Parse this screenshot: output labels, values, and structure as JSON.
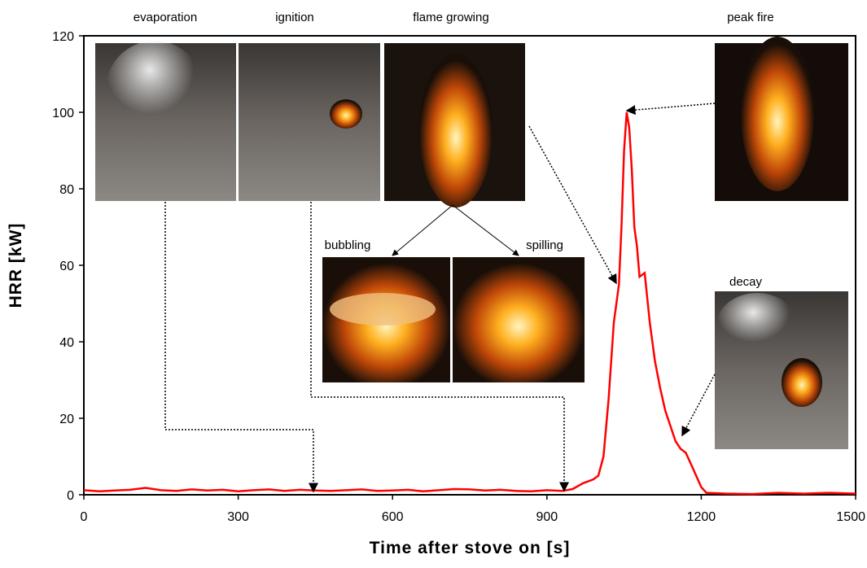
{
  "chart_data": {
    "type": "line",
    "xlabel": "Time after stove on [s]",
    "ylabel": "HRR [kW]",
    "xlim": [
      0,
      1500
    ],
    "ylim": [
      0,
      120
    ],
    "xticks": [
      0,
      300,
      600,
      900,
      1200,
      1500
    ],
    "yticks": [
      0,
      20,
      40,
      60,
      80,
      100,
      120
    ],
    "annotations": [
      "evaporation",
      "ignition",
      "flame growing",
      "peak fire",
      "bubbling",
      "spilling",
      "decay"
    ],
    "series": [
      {
        "name": "HRR",
        "color": "#ff0000",
        "x": [
          0,
          30,
          60,
          90,
          120,
          150,
          180,
          210,
          240,
          270,
          300,
          330,
          360,
          390,
          420,
          450,
          480,
          510,
          540,
          570,
          600,
          630,
          660,
          690,
          720,
          750,
          780,
          810,
          840,
          870,
          900,
          930,
          950,
          970,
          990,
          1000,
          1010,
          1020,
          1030,
          1040,
          1045,
          1050,
          1055,
          1060,
          1065,
          1070,
          1075,
          1080,
          1090,
          1100,
          1110,
          1120,
          1130,
          1140,
          1150,
          1160,
          1170,
          1180,
          1190,
          1200,
          1210,
          1250,
          1300,
          1350,
          1400,
          1450,
          1500
        ],
        "values": [
          1.2,
          0.9,
          1.1,
          1.3,
          1.8,
          1.2,
          1.0,
          1.4,
          1.1,
          1.3,
          0.9,
          1.2,
          1.4,
          1.0,
          1.3,
          1.1,
          1.0,
          1.2,
          1.4,
          1.0,
          1.1,
          1.3,
          0.9,
          1.2,
          1.5,
          1.4,
          1.1,
          1.3,
          1.0,
          0.9,
          1.2,
          1.0,
          1.5,
          3,
          4,
          5,
          10,
          25,
          45,
          55,
          70,
          90,
          100,
          96,
          85,
          70,
          65,
          57,
          58,
          45,
          35,
          28,
          22,
          18,
          14,
          12,
          11,
          8,
          5,
          2,
          0.5,
          0.3,
          0.2,
          0.5,
          0.3,
          0.5,
          0.3
        ]
      }
    ]
  }
}
